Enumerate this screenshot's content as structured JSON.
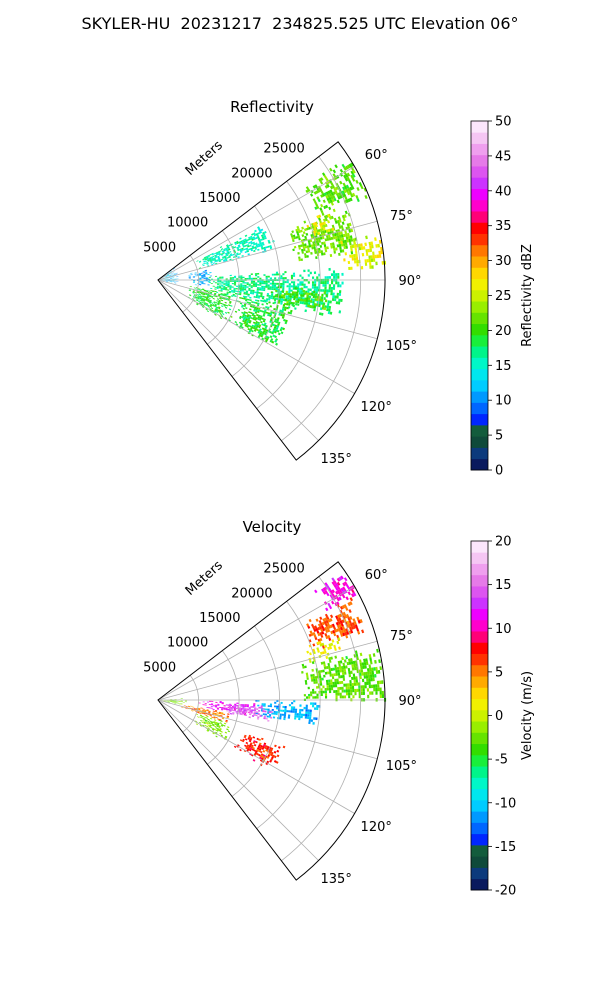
{
  "figure_title": "SKYLER-HU  20231217  234825.525 UTC Elevation 06°",
  "chart_data": [
    {
      "type": "heatmap",
      "projection": "polar-sector",
      "title": "Reflectivity",
      "radial_label": "Meters",
      "radial_ticks": [
        "5000",
        "10000",
        "15000",
        "20000",
        "25000"
      ],
      "radial_tick_values": [
        5000,
        10000,
        15000,
        20000,
        25000
      ],
      "rlim": [
        0,
        28000
      ],
      "azimuth_range_deg": [
        52.5,
        142.5
      ],
      "azimuth_ticks": [
        "60°",
        "75°",
        "90°",
        "105°",
        "120°",
        "135°"
      ],
      "azimuth_tick_values": [
        60,
        75,
        90,
        105,
        120,
        135
      ],
      "grid": true,
      "colorbar": {
        "label": "Reflectivity dBZ",
        "range": [
          0,
          50
        ],
        "ticks": [
          "0",
          "5",
          "10",
          "15",
          "20",
          "25",
          "30",
          "35",
          "40",
          "45",
          "50"
        ],
        "colors": [
          "#0a1a5e",
          "#0c3a7c",
          "#0f4a3a",
          "#135c3c",
          "#0026ff",
          "#0066ff",
          "#0099ff",
          "#00ccff",
          "#00e6ee",
          "#00f7c8",
          "#00f58a",
          "#19ef3b",
          "#33dd00",
          "#66e300",
          "#99ee00",
          "#ccf200",
          "#f2f000",
          "#ffd800",
          "#ffaa00",
          "#ff7700",
          "#ff3300",
          "#ff0000",
          "#ff0077",
          "#ff00cc",
          "#ee00ff",
          "#cc33ff",
          "#dd55f0",
          "#e67ae8",
          "#ef9fee",
          "#f5c6f3",
          "#fbe6fb"
        ]
      },
      "echo_regions": [
        {
          "az": [
            57,
            68
          ],
          "r": [
            21000,
            28000
          ],
          "value": 21
        },
        {
          "az": [
            68,
            82
          ],
          "r": [
            17000,
            25000
          ],
          "value": 22
        },
        {
          "az": [
            68,
            74
          ],
          "r": [
            19500,
            22500
          ],
          "value": 27
        },
        {
          "az": [
            78,
            87
          ],
          "r": [
            23000,
            28000
          ],
          "value": 26
        },
        {
          "az": [
            86,
            102
          ],
          "r": [
            6000,
            23000
          ],
          "value": 17
        },
        {
          "az": [
            93,
            101
          ],
          "r": [
            14000,
            21000
          ],
          "value": 21
        },
        {
          "az": [
            100,
            122
          ],
          "r": [
            4000,
            9500
          ],
          "value": 19
        },
        {
          "az": [
            62,
            75
          ],
          "r": [
            5000,
            15000
          ],
          "value": 16
        },
        {
          "az": [
            53,
            100
          ],
          "r": [
            200,
            2500
          ],
          "value": 12
        },
        {
          "az": [
            78,
            97
          ],
          "r": [
            3800,
            6500
          ],
          "value": 11
        },
        {
          "az": [
            100,
            120
          ],
          "r": [
            10000,
            17000
          ],
          "value": 19
        }
      ]
    },
    {
      "type": "heatmap",
      "projection": "polar-sector",
      "title": "Velocity",
      "radial_label": "Meters",
      "radial_ticks": [
        "5000",
        "10000",
        "15000",
        "20000",
        "25000"
      ],
      "radial_tick_values": [
        5000,
        10000,
        15000,
        20000,
        25000
      ],
      "rlim": [
        0,
        28000
      ],
      "azimuth_range_deg": [
        52.5,
        142.5
      ],
      "azimuth_ticks": [
        "60°",
        "75°",
        "90°",
        "105°",
        "120°",
        "135°"
      ],
      "azimuth_tick_values": [
        60,
        75,
        90,
        105,
        120,
        135
      ],
      "grid": true,
      "colorbar": {
        "label": "Velocity (m/s)",
        "range": [
          -20,
          20
        ],
        "ticks": [
          "-20",
          "-15",
          "-10",
          "-5",
          "0",
          "5",
          "10",
          "15",
          "20"
        ],
        "colors": [
          "#0a1a5e",
          "#0c3a7c",
          "#0f4a3a",
          "#135c3c",
          "#0026ff",
          "#0066ff",
          "#0099ff",
          "#00ccff",
          "#00e6ee",
          "#00f7c8",
          "#00f58a",
          "#19ef3b",
          "#33dd00",
          "#66e300",
          "#99ee00",
          "#ccf200",
          "#f2f000",
          "#ffd800",
          "#ffaa00",
          "#ff7700",
          "#ff3300",
          "#ff0000",
          "#ff0077",
          "#ff00cc",
          "#ee00ff",
          "#cc33ff",
          "#dd55f0",
          "#e67ae8",
          "#ef9fee",
          "#f5c6f3",
          "#fbe6fb"
        ]
      },
      "echo_regions": [
        {
          "az": [
            55,
            62
          ],
          "r": [
            23500,
            28000
          ],
          "value": 11
        },
        {
          "az": [
            62,
            72
          ],
          "r": [
            20000,
            27000
          ],
          "value": 6
        },
        {
          "az": [
            70,
            76
          ],
          "r": [
            19000,
            24000
          ],
          "value": 1
        },
        {
          "az": [
            76,
            90
          ],
          "r": [
            18000,
            28000
          ],
          "value": -3
        },
        {
          "az": [
            90,
            99
          ],
          "r": [
            12000,
            20000
          ],
          "value": -11
        },
        {
          "az": [
            91,
            100
          ],
          "r": [
            5000,
            12000
          ],
          "value": 12
        },
        {
          "az": [
            93,
            101
          ],
          "r": [
            8000,
            14000
          ],
          "value": 15
        },
        {
          "az": [
            100,
            108
          ],
          "r": [
            3000,
            9000
          ],
          "value": 5
        },
        {
          "az": [
            108,
            122
          ],
          "r": [
            5000,
            9500
          ],
          "value": -2
        },
        {
          "az": [
            86,
            102
          ],
          "r": [
            200,
            3500
          ],
          "value": -2
        },
        {
          "az": [
            110,
            122
          ],
          "r": [
            11000,
            16500
          ],
          "value": 7
        }
      ]
    }
  ]
}
